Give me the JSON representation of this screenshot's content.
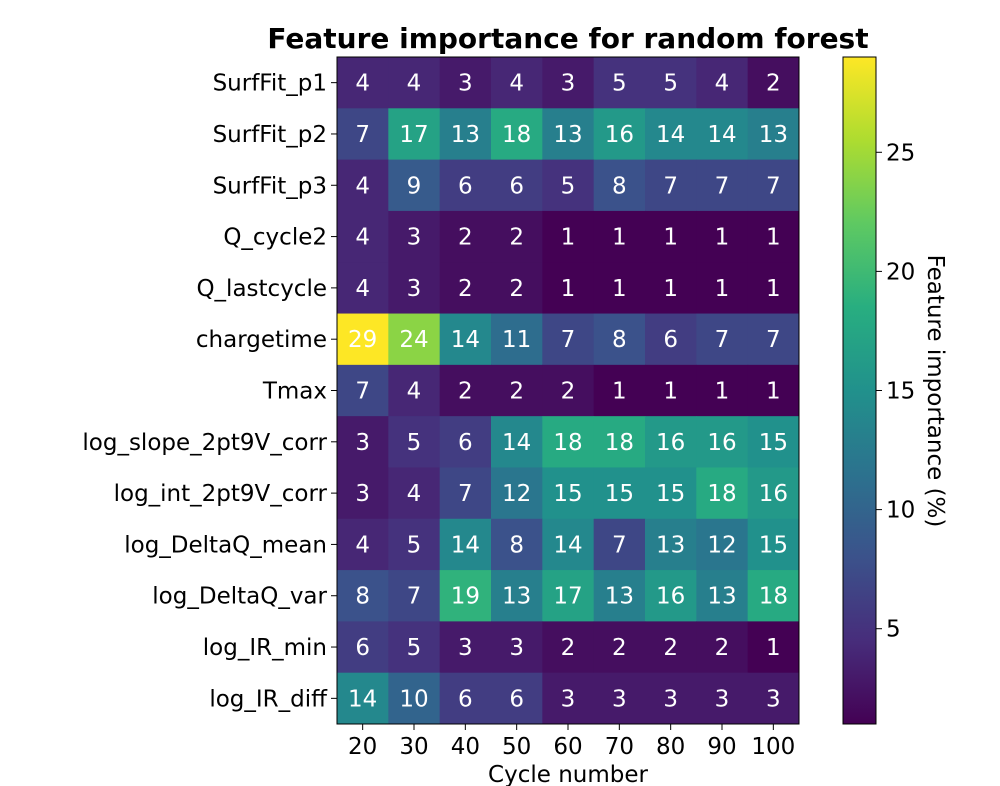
{
  "chart_data": {
    "type": "heatmap",
    "title": "Feature importance for random forest",
    "xlabel": "Cycle number",
    "colorbar_label": "Feature importance (%)",
    "colormap": "viridis",
    "value_range": [
      1,
      29
    ],
    "colorbar_ticks": [
      5,
      10,
      15,
      20,
      25
    ],
    "x": [
      "20",
      "30",
      "40",
      "50",
      "60",
      "70",
      "80",
      "90",
      "100"
    ],
    "y": [
      "SurfFit_p1",
      "SurfFit_p2",
      "SurfFit_p3",
      "Q_cycle2",
      "Q_lastcycle",
      "chargetime",
      "Tmax",
      "log_slope_2pt9V_corr",
      "log_int_2pt9V_corr",
      "log_DeltaQ_mean",
      "log_DeltaQ_var",
      "log_IR_min",
      "log_IR_diff"
    ],
    "values": [
      [
        4,
        4,
        3,
        4,
        3,
        5,
        5,
        4,
        2
      ],
      [
        7,
        17,
        13,
        18,
        13,
        16,
        14,
        14,
        13
      ],
      [
        4,
        9,
        6,
        6,
        5,
        8,
        7,
        7,
        7
      ],
      [
        4,
        3,
        2,
        2,
        1,
        1,
        1,
        1,
        1
      ],
      [
        4,
        3,
        2,
        2,
        1,
        1,
        1,
        1,
        1
      ],
      [
        29,
        24,
        14,
        11,
        7,
        8,
        6,
        7,
        7
      ],
      [
        7,
        4,
        2,
        2,
        2,
        1,
        1,
        1,
        1
      ],
      [
        3,
        5,
        6,
        14,
        18,
        18,
        16,
        16,
        15
      ],
      [
        3,
        4,
        7,
        12,
        15,
        15,
        15,
        18,
        16
      ],
      [
        4,
        5,
        14,
        8,
        14,
        7,
        13,
        12,
        15
      ],
      [
        8,
        7,
        19,
        13,
        17,
        13,
        16,
        13,
        18
      ],
      [
        6,
        5,
        3,
        3,
        2,
        2,
        2,
        2,
        1
      ],
      [
        14,
        10,
        6,
        6,
        3,
        3,
        3,
        3,
        3
      ]
    ]
  }
}
